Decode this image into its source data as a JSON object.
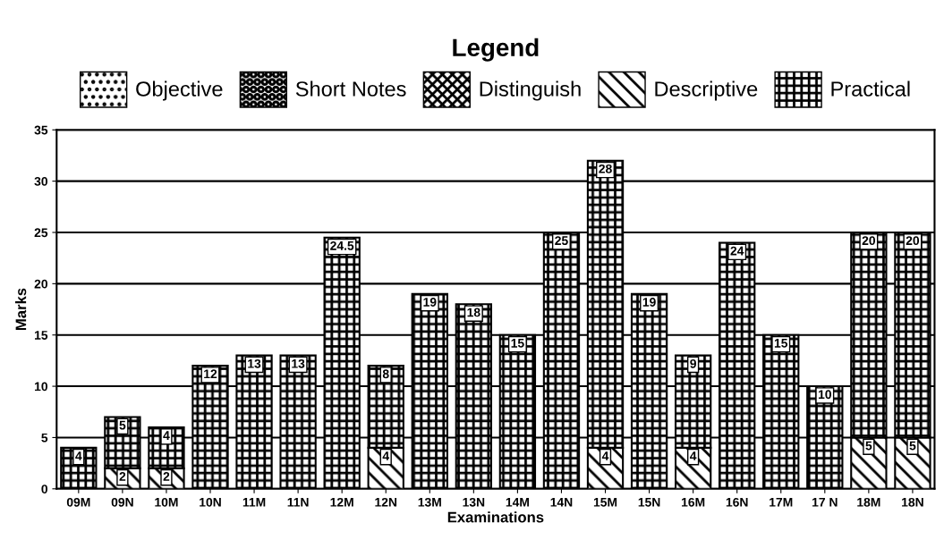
{
  "chart_data": {
    "type": "bar",
    "stacked": true,
    "legend_title": "Legend",
    "legend": "top",
    "xlabel": "Examinations",
    "ylabel": "Marks",
    "categories": [
      "09M",
      "09N",
      "10M",
      "10N",
      "11M",
      "11N",
      "12M",
      "12N",
      "13M",
      "13N",
      "14M",
      "14N",
      "15M",
      "15N",
      "16M",
      "16N",
      "17M",
      "17 N",
      "18M",
      "18N"
    ],
    "series": [
      {
        "name": "Objective",
        "color": "#000000",
        "values": [
          null,
          null,
          null,
          null,
          null,
          null,
          null,
          null,
          null,
          null,
          null,
          null,
          null,
          null,
          null,
          null,
          null,
          null,
          null,
          null
        ]
      },
      {
        "name": "Short Notes",
        "color": "#000000",
        "values": [
          null,
          null,
          null,
          null,
          null,
          null,
          null,
          null,
          null,
          null,
          null,
          null,
          null,
          null,
          null,
          null,
          null,
          null,
          null,
          null
        ]
      },
      {
        "name": "Distinguish",
        "color": "#000000",
        "values": [
          null,
          null,
          null,
          null,
          null,
          null,
          null,
          null,
          null,
          null,
          null,
          null,
          null,
          null,
          null,
          null,
          null,
          null,
          null,
          null
        ]
      },
      {
        "name": "Descriptive",
        "color": "#000000",
        "values": [
          null,
          2,
          2,
          null,
          null,
          null,
          null,
          4,
          null,
          null,
          null,
          null,
          4,
          null,
          4,
          null,
          null,
          null,
          5,
          5
        ]
      },
      {
        "name": "Practical",
        "color": "#000000",
        "values": [
          4,
          5,
          4,
          12,
          13,
          13,
          24.5,
          8,
          19,
          18,
          15,
          25,
          28,
          19,
          9,
          24,
          15,
          10,
          20,
          20
        ]
      }
    ],
    "ylim": [
      0,
      35
    ],
    "yticks": [
      0,
      5,
      10,
      15,
      20,
      25,
      30,
      35
    ],
    "grid": "y",
    "data_labels": true
  }
}
